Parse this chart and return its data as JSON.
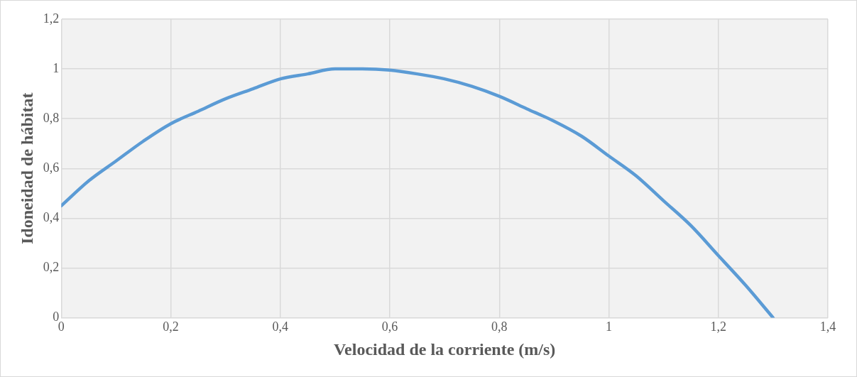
{
  "chart_data": {
    "type": "line",
    "xlabel": "Velocidad de la corriente (m/s)",
    "ylabel": "Idoneidad de hábitat",
    "series": [
      {
        "color": "#5b9bd5",
        "x": [
          0,
          0.05,
          0.1,
          0.15,
          0.2,
          0.25,
          0.3,
          0.35,
          0.4,
          0.45,
          0.5,
          0.55,
          0.6,
          0.65,
          0.7,
          0.75,
          0.8,
          0.85,
          0.9,
          0.95,
          1.0,
          1.05,
          1.1,
          1.15,
          1.2,
          1.25,
          1.3
        ],
        "values": [
          0.45,
          0.55,
          0.63,
          0.71,
          0.78,
          0.83,
          0.88,
          0.92,
          0.96,
          0.98,
          1.0,
          1.0,
          0.995,
          0.98,
          0.96,
          0.93,
          0.89,
          0.84,
          0.79,
          0.73,
          0.65,
          0.57,
          0.47,
          0.37,
          0.25,
          0.13,
          0.0
        ]
      }
    ],
    "xlim": [
      0,
      1.4
    ],
    "xticks": [
      0,
      {
        "value": 0.2,
        "label": "0,2"
      },
      {
        "value": 0.4,
        "label": "0,4"
      },
      {
        "value": 0.6,
        "label": "0,6"
      },
      {
        "value": 0.8,
        "label": "0,8"
      },
      1,
      {
        "value": 1.2,
        "label": "1,2"
      },
      {
        "value": 1.4,
        "label": "1,4"
      }
    ],
    "ylim": [
      0,
      1.2
    ],
    "yticks": [
      0,
      {
        "value": 0.2,
        "label": "0,2"
      },
      {
        "value": 0.4,
        "label": "0,4"
      },
      {
        "value": 0.6,
        "label": "0,6"
      },
      {
        "value": 0.8,
        "label": "0,8"
      },
      1,
      {
        "value": 1.2,
        "label": "1,2"
      }
    ],
    "grid": true,
    "legend": false,
    "marker": "none",
    "line_style": "solid"
  }
}
